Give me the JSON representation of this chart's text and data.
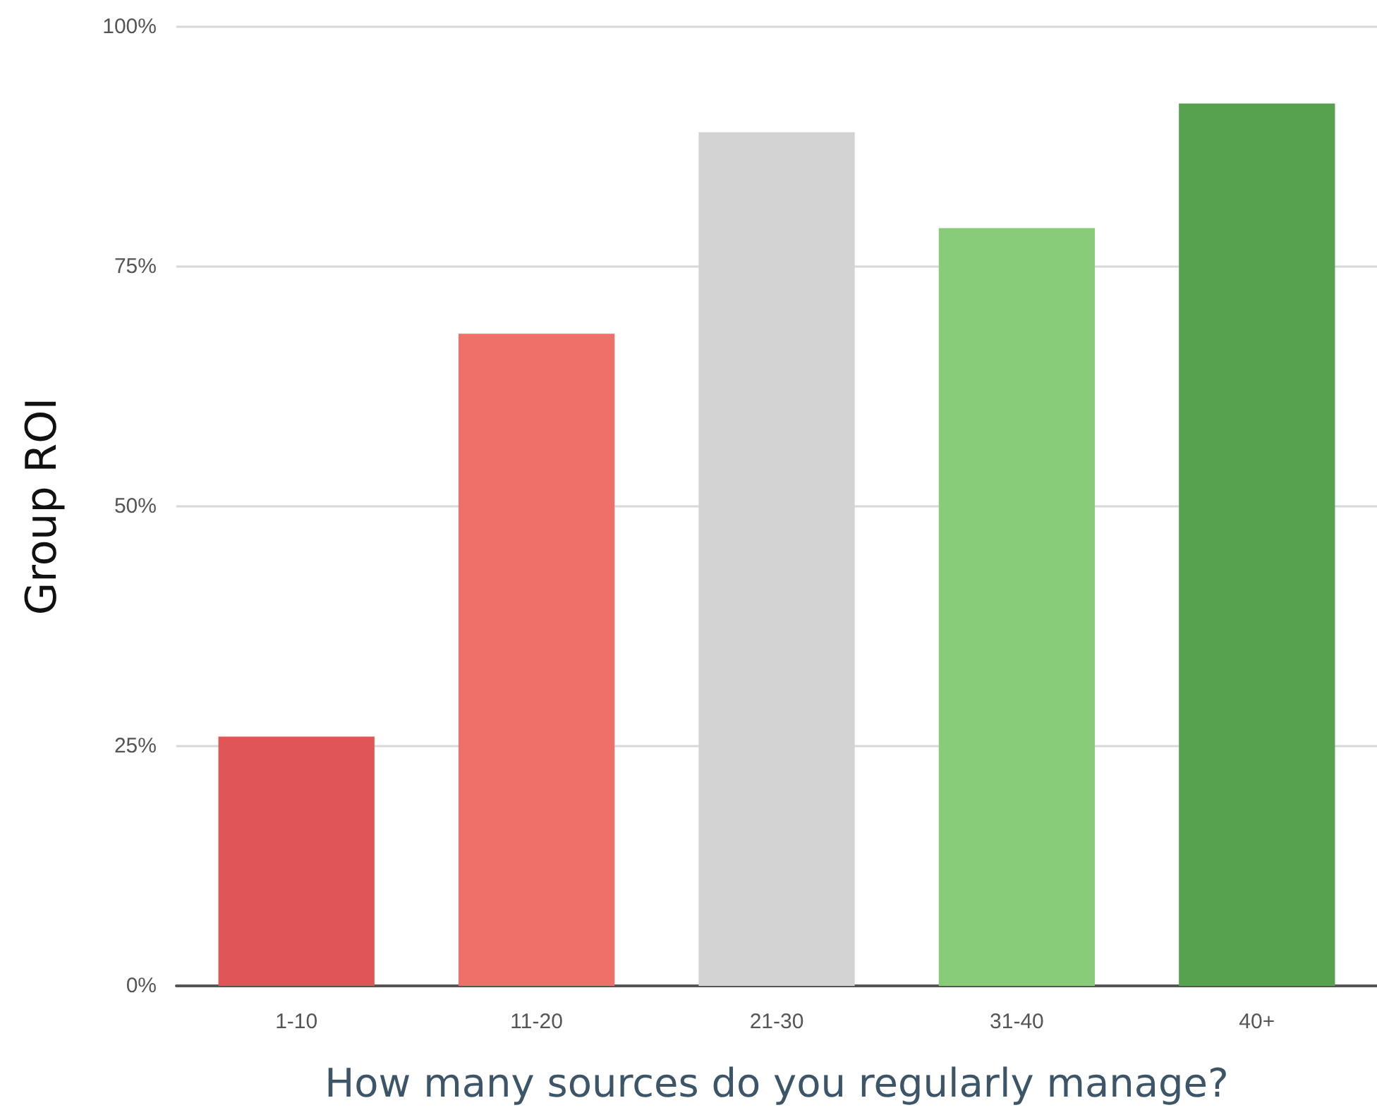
{
  "chart_data": {
    "type": "bar",
    "xlabel": "How many sources do you regularly manage?",
    "ylabel": "Group ROI",
    "categories": [
      "1-10",
      "11-20",
      "21-30",
      "31-40",
      "40+"
    ],
    "values": [
      26,
      68,
      89,
      79,
      92
    ],
    "colors": [
      "#e05555",
      "#ee7069",
      "#d3d3d3",
      "#88cc7a",
      "#57a24e"
    ],
    "ylim": [
      0,
      100
    ],
    "yticks": [
      {
        "value": 0,
        "label": "0%"
      },
      {
        "value": 25,
        "label": "25%"
      },
      {
        "value": 50,
        "label": "50%"
      },
      {
        "value": 75,
        "label": "75%"
      },
      {
        "value": 100,
        "label": "100%"
      }
    ],
    "grid": "y"
  }
}
